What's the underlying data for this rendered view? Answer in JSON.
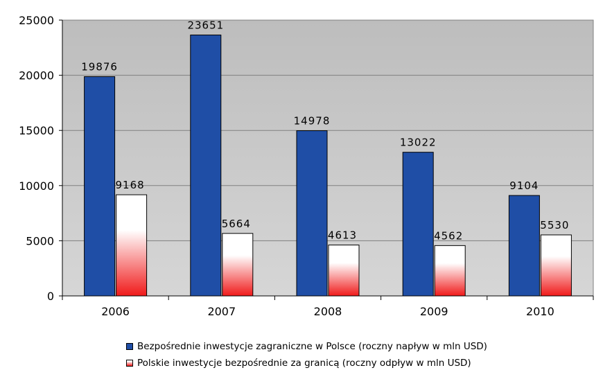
{
  "chart_data": {
    "type": "bar",
    "categories": [
      "2006",
      "2007",
      "2008",
      "2009",
      "2010"
    ],
    "series": [
      {
        "name": "Bezpośrednie inwestycje zagraniczne w Polsce (roczny napływ w mln USD)",
        "values": [
          19876,
          23651,
          14978,
          13022,
          9104
        ],
        "labels": [
          "19876",
          "23651",
          "14978",
          "13022",
          "9104"
        ],
        "color": "#1f4ea6"
      },
      {
        "name": "Polskie inwestycje bezpośrednie za granicą (roczny odpływ w mln USD)",
        "values": [
          9168,
          5664,
          4613,
          4562,
          5530
        ],
        "labels": [
          "9168",
          "5664",
          "4613",
          "4562",
          "5530"
        ],
        "color": "#f01a1a"
      }
    ],
    "yticks": [
      "0",
      "5000",
      "10000",
      "15000",
      "20000",
      "25000"
    ],
    "ylim": [
      0,
      25000
    ],
    "grid": true,
    "legend_position": "bottom",
    "plot_background": "#c0c0c0"
  }
}
